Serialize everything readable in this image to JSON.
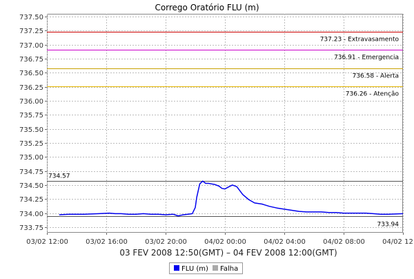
{
  "chart_data": {
    "type": "line",
    "title": "Corrego Oratório FLU (m)",
    "subtitle": "03 FEV 2008 12:50(GMT) – 04 FEV 2008 12:00(GMT)",
    "xlabel": "",
    "ylabel": "",
    "ylim": [
      733.65,
      737.55
    ],
    "y_ticks": [
      733.75,
      734.0,
      734.25,
      734.5,
      734.75,
      735.0,
      735.25,
      735.5,
      735.75,
      736.0,
      736.25,
      736.5,
      736.75,
      737.0,
      737.25,
      737.5
    ],
    "y_tick_labels": [
      "733.75",
      "734.00",
      "734.25",
      "734.50",
      "734.75",
      "735.00",
      "735.25",
      "735.50",
      "735.75",
      "736.00",
      "736.25",
      "736.50",
      "736.75",
      "737.00",
      "737.25",
      "737.50"
    ],
    "x_range_hours": [
      0,
      24
    ],
    "x_ticks": [
      0,
      4,
      8,
      12,
      16,
      20,
      24
    ],
    "x_tick_labels": [
      "03/02 12:00",
      "03/02 16:00",
      "03/02 20:00",
      "04/02 00:00",
      "04/02 04:00",
      "04/02 08:00",
      "04/02 12:00"
    ],
    "thresholds": [
      {
        "value": 737.23,
        "label": "737.23 - Extravasamento",
        "color": "#cc0000"
      },
      {
        "value": 736.91,
        "label": "736.91 - Emergencia",
        "color": "#cc00cc"
      },
      {
        "value": 736.58,
        "label": "736.58 - Alerta",
        "color": "#c8a000"
      },
      {
        "value": 736.26,
        "label": "736.26 - Atenção",
        "color": "#e8b800"
      }
    ],
    "max_line": {
      "value": 734.57,
      "label": "734.57",
      "color": "#555555"
    },
    "min_line": {
      "value": 733.94,
      "label": "733.94",
      "color": "#555555"
    },
    "series": [
      {
        "name": "FLU (m)",
        "color": "#0000ee",
        "x": [
          0.83,
          1.5,
          2.5,
          3.5,
          4.2,
          4.6,
          5.0,
          5.5,
          6.0,
          6.5,
          7.0,
          7.5,
          8.0,
          8.5,
          8.85,
          9.0,
          9.2,
          9.5,
          9.8,
          10.0,
          10.1,
          10.3,
          10.5,
          10.7,
          10.9,
          11.1,
          11.3,
          11.6,
          11.8,
          12.0,
          12.2,
          12.5,
          12.8,
          13.2,
          13.6,
          14.0,
          14.5,
          15.0,
          15.5,
          16.0,
          16.5,
          17.0,
          17.5,
          18.0,
          18.5,
          19.0,
          19.5,
          20.0,
          20.5,
          21.0,
          21.5,
          22.0,
          22.5,
          23.0,
          24.0
        ],
        "y": [
          733.97,
          733.98,
          733.98,
          733.99,
          734.0,
          733.99,
          733.99,
          733.98,
          733.98,
          733.99,
          733.98,
          733.98,
          733.97,
          733.98,
          733.95,
          733.96,
          733.97,
          733.98,
          733.99,
          734.1,
          734.28,
          734.52,
          734.57,
          734.53,
          734.53,
          734.52,
          734.51,
          734.48,
          734.44,
          734.43,
          734.46,
          734.5,
          734.47,
          734.33,
          734.24,
          734.18,
          734.16,
          734.12,
          734.09,
          734.07,
          734.05,
          734.03,
          734.02,
          734.02,
          734.02,
          734.01,
          734.01,
          734.0,
          734.0,
          734.0,
          734.0,
          733.99,
          733.98,
          733.98,
          733.99
        ]
      }
    ],
    "legend": [
      {
        "name": "FLU (m)",
        "color": "#0000ee"
      },
      {
        "name": "Falha",
        "color": "#aaaaaa"
      }
    ],
    "legend_placement": "bottom-center",
    "grid": true
  }
}
